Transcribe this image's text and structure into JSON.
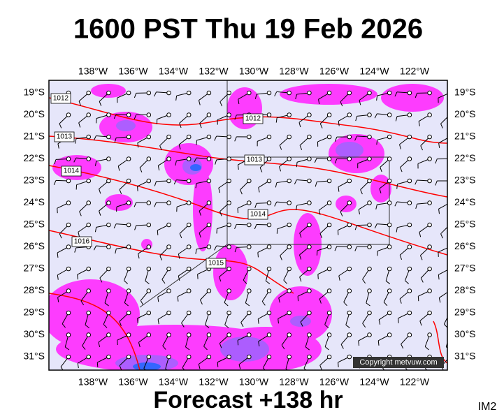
{
  "title": "1600 PST Thu 19 Feb 2026",
  "footer": "Forecast +138 hr",
  "image_id": "IM2",
  "copyright": "Copyright metvuw.com",
  "longitude_labels": [
    "138°W",
    "136°W",
    "134°W",
    "132°W",
    "130°W",
    "128°W",
    "126°W",
    "124°W",
    "122°W"
  ],
  "latitude_labels": [
    "19°S",
    "20°S",
    "21°S",
    "22°S",
    "23°S",
    "24°S",
    "25°S",
    "26°S",
    "27°S",
    "28°S",
    "29°S",
    "30°S",
    "31°S"
  ],
  "isobar_labels": [
    "1012",
    "1012",
    "1013",
    "1013",
    "1014",
    "1014",
    "1016",
    "1015"
  ]
}
